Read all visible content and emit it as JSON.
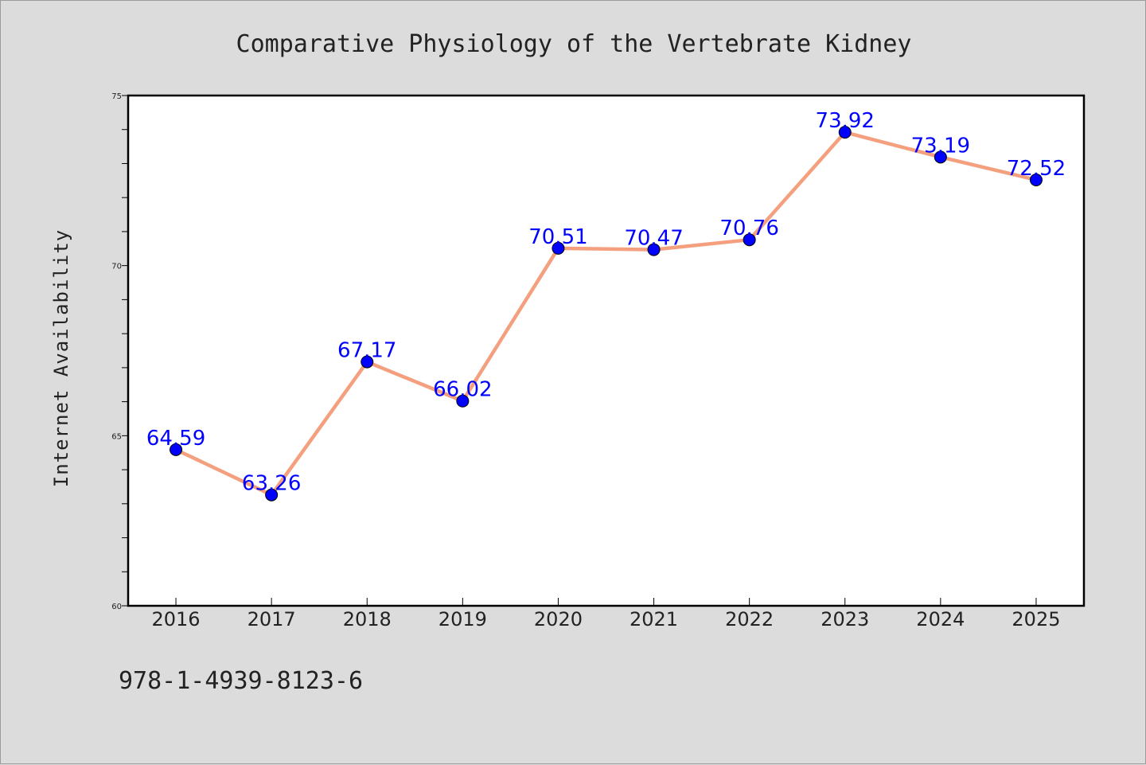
{
  "chart_data": {
    "type": "line",
    "title": "Comparative Physiology of the Vertebrate Kidney",
    "xlabel": "",
    "ylabel": "Internet Availability",
    "categories": [
      "2016",
      "2017",
      "2018",
      "2019",
      "2020",
      "2021",
      "2022",
      "2023",
      "2024",
      "2025"
    ],
    "series": [
      {
        "values": [
          64.59,
          63.26,
          67.17,
          66.02,
          70.51,
          70.47,
          70.76,
          73.92,
          73.19,
          72.52
        ],
        "line_color": "#f4a07f",
        "marker_color": "#0000ff",
        "label_color": "#0000ff"
      }
    ],
    "data_labels": [
      "64.59",
      "63.26",
      "67.17",
      "66.02",
      "70.51",
      "70.47",
      "70.76",
      "73.92",
      "73.19",
      "72.52"
    ],
    "ylim": [
      60,
      75
    ],
    "yticks": [
      "60",
      "65",
      "70",
      "75"
    ],
    "grid": false,
    "legend": "none"
  },
  "footer": {
    "isbn": "978-1-4939-8123-6"
  }
}
